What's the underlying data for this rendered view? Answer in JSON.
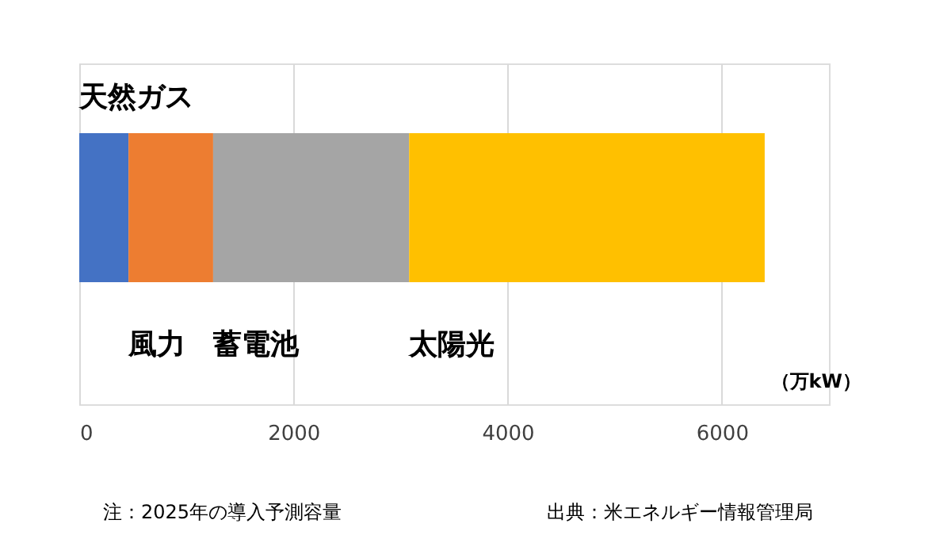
{
  "chart_data": {
    "type": "bar",
    "orientation": "horizontal",
    "stacked": true,
    "categories": [
      null
    ],
    "series": [
      {
        "name": "天然ガス",
        "color": "#4472c4",
        "values": [
          460
        ]
      },
      {
        "name": "風力",
        "color": "#ed7d31",
        "values": [
          790
        ]
      },
      {
        "name": "蓄電池",
        "color": "#a5a5a5",
        "values": [
          1830
        ]
      },
      {
        "name": "太陽光",
        "color": "#ffc000",
        "values": [
          3320
        ]
      }
    ],
    "xlabel": "（万kW）",
    "xlim": [
      0,
      7000
    ],
    "xticks": [
      0,
      2000,
      4000,
      6000
    ],
    "grid": "x",
    "annotations": [
      "注：2025年の導入予測容量",
      "出典：米エネルギー情報管理局"
    ]
  }
}
